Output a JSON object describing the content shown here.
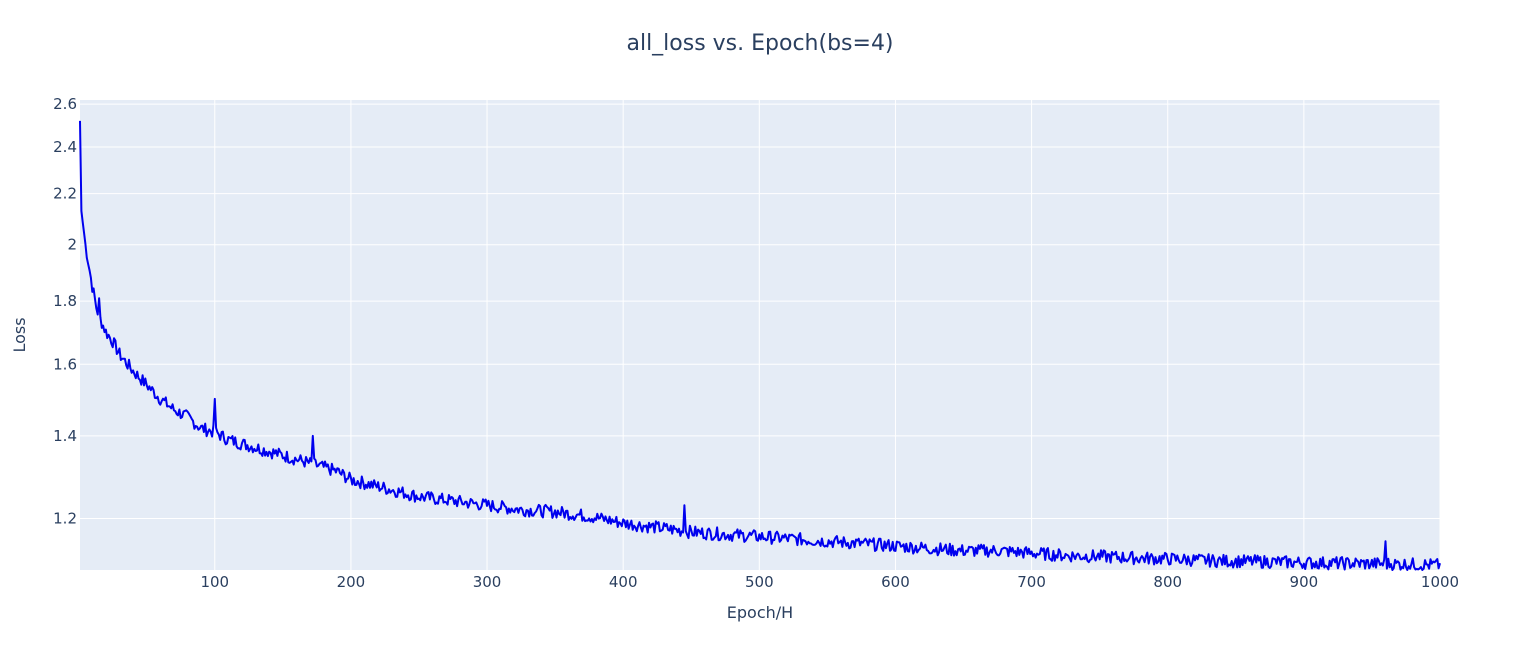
{
  "chart_data": {
    "type": "line",
    "title": "all_loss vs. Epoch(bs=4)",
    "xlabel": "Epoch/H",
    "ylabel": "Loss",
    "xlim": [
      1,
      1000
    ],
    "ylim": [
      1.09,
      2.62
    ],
    "y_scale": "log",
    "grid": true,
    "legend": "none",
    "xticks": [
      100,
      200,
      300,
      400,
      500,
      600,
      700,
      800,
      900,
      1000
    ],
    "xtick_labels": [
      "100",
      "200",
      "300",
      "400",
      "500",
      "600",
      "700",
      "800",
      "900",
      "1000"
    ],
    "yticks": [
      1.2,
      1.4,
      1.6,
      1.8,
      2.0,
      2.2,
      2.4,
      2.6
    ],
    "ytick_labels": [
      "1.2",
      "1.4",
      "1.6",
      "1.8",
      "2",
      "2.2",
      "2.4",
      "2.6"
    ],
    "series": [
      {
        "color": "#0000ee",
        "x": [
          1,
          2,
          5,
          10,
          13,
          15,
          18,
          20,
          25,
          30,
          40,
          50,
          60,
          70,
          80,
          90,
          100,
          110,
          120,
          130,
          140,
          150,
          160,
          170,
          180,
          190,
          200,
          225,
          250,
          275,
          300,
          325,
          350,
          375,
          400,
          425,
          450,
          475,
          500,
          525,
          550,
          575,
          600,
          625,
          650,
          675,
          700,
          725,
          750,
          775,
          800,
          825,
          850,
          875,
          900,
          925,
          950,
          975,
          1000
        ],
        "y": [
          2.52,
          2.13,
          2.0,
          1.85,
          1.78,
          1.75,
          1.72,
          1.7,
          1.67,
          1.63,
          1.58,
          1.54,
          1.5,
          1.47,
          1.45,
          1.42,
          1.41,
          1.39,
          1.38,
          1.37,
          1.36,
          1.35,
          1.34,
          1.33,
          1.32,
          1.31,
          1.29,
          1.27,
          1.25,
          1.24,
          1.23,
          1.22,
          1.215,
          1.205,
          1.19,
          1.18,
          1.17,
          1.165,
          1.16,
          1.155,
          1.15,
          1.145,
          1.14,
          1.135,
          1.13,
          1.13,
          1.125,
          1.12,
          1.118,
          1.115,
          1.113,
          1.11,
          1.108,
          1.107,
          1.105,
          1.104,
          1.103,
          1.102,
          1.1
        ],
        "noise": 0.012,
        "spikes": [
          {
            "x": 15,
            "y": 1.81
          },
          {
            "x": 100,
            "y": 1.5
          },
          {
            "x": 172,
            "y": 1.4
          },
          {
            "x": 445,
            "y": 1.23
          },
          {
            "x": 960,
            "y": 1.15
          }
        ]
      }
    ]
  }
}
